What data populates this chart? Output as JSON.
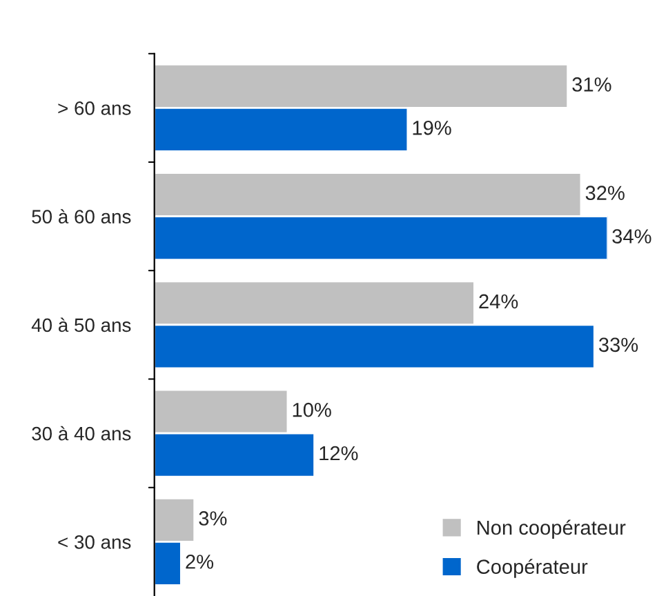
{
  "chart_data": {
    "type": "bar",
    "orientation": "horizontal",
    "categories": [
      "> 60 ans",
      "50 à 60 ans",
      "40 à 50 ans",
      "30 à 40 ans",
      "< 30 ans"
    ],
    "series": [
      {
        "name": "Non coopérateur",
        "color": "#c0c0c0",
        "values": [
          31,
          32,
          24,
          10,
          3
        ],
        "value_labels": [
          "31%",
          "32%",
          "24%",
          "10%",
          "3%"
        ]
      },
      {
        "name": "Coopérateur",
        "color": "#0066cc",
        "values": [
          19,
          34,
          33,
          12,
          2
        ],
        "value_labels": [
          "19%",
          "34%",
          "33%",
          "12%",
          "2%"
        ]
      }
    ],
    "legend": "bottom right",
    "grid": false
  }
}
